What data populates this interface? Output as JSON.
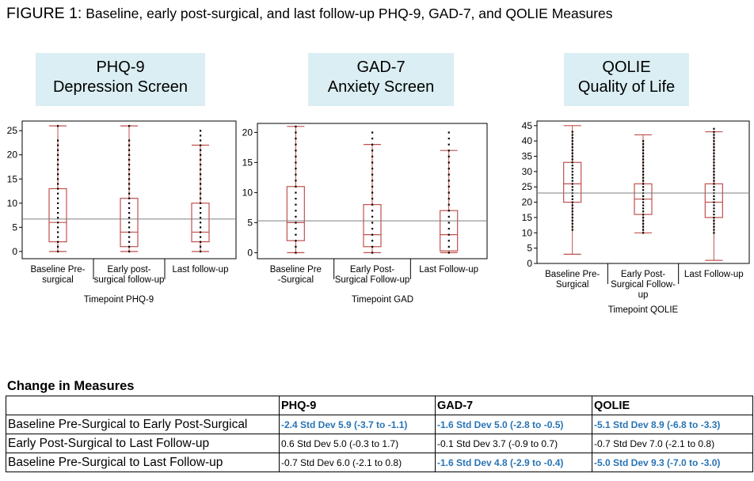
{
  "figure": {
    "label": "FIGURE 1:",
    "caption": "Baseline, early post-surgical, and last follow-up PHQ-9, GAD-7, and QOLIE Measures"
  },
  "colors": {
    "panel_label_bg": "#daeef3",
    "box_stroke": "#c0504d",
    "mean_line": "#7f7f7f",
    "highlight_text": "#2874b4"
  },
  "chart_data": [
    {
      "type": "box",
      "panel_title": [
        "PHQ-9",
        "Depression Screen"
      ],
      "xlabel": "Timepoint PHQ-9",
      "ylabel": "",
      "ylim": [
        -1.5,
        27
      ],
      "yticks": [
        0,
        5,
        10,
        15,
        20,
        25
      ],
      "reference_line": 6.7,
      "categories": [
        [
          "Baseline Pre-",
          "surgical"
        ],
        [
          "Early post-",
          "surgical follow-up"
        ],
        [
          "Last follow-up"
        ]
      ],
      "boxes": [
        {
          "min": 0,
          "q1": 2,
          "median": 6,
          "q3": 13,
          "max": 26
        },
        {
          "min": 0,
          "q1": 1,
          "median": 4,
          "q3": 11,
          "max": 26
        },
        {
          "min": 0,
          "q1": 2,
          "median": 4,
          "q3": 10,
          "max": 22
        }
      ],
      "points": [
        [
          0,
          1,
          2,
          3,
          4,
          5,
          6,
          7,
          8,
          9,
          10,
          11,
          12,
          13,
          14,
          15,
          16,
          17,
          18,
          19,
          20,
          21,
          22,
          23,
          26
        ],
        [
          0,
          1,
          2,
          3,
          4,
          5,
          6,
          7,
          8,
          9,
          10,
          11,
          12,
          13,
          14,
          15,
          16,
          17,
          18,
          19,
          20,
          21,
          22,
          23,
          26
        ],
        [
          0,
          1,
          2,
          3,
          4,
          5,
          6,
          7,
          8,
          9,
          10,
          11,
          12,
          13,
          14,
          15,
          16,
          17,
          18,
          19,
          20,
          21,
          22,
          23,
          24,
          25
        ]
      ]
    },
    {
      "type": "box",
      "panel_title": [
        "GAD-7",
        "Anxiety Screen"
      ],
      "xlabel": "Timepoint GAD",
      "ylabel": "",
      "ylim": [
        -1,
        21.5
      ],
      "yticks": [
        0,
        5,
        10,
        15,
        20
      ],
      "reference_line": 5.3,
      "categories": [
        [
          "Baseline Pre",
          "-Surgical"
        ],
        [
          "Early Post-",
          "Surgical Follow-up"
        ],
        [
          "Last Follow-up"
        ]
      ],
      "boxes": [
        {
          "min": 0,
          "q1": 2,
          "median": 5,
          "q3": 11,
          "max": 21
        },
        {
          "min": 0,
          "q1": 1,
          "median": 3,
          "q3": 8,
          "max": 18
        },
        {
          "min": 0,
          "q1": 0.3,
          "median": 3,
          "q3": 7,
          "max": 17
        }
      ],
      "points": [
        [
          0,
          1,
          2,
          3,
          4,
          5,
          6,
          7,
          8,
          9,
          10,
          11,
          12,
          13,
          14,
          15,
          16,
          17,
          18,
          19,
          20,
          21
        ],
        [
          0,
          1,
          2,
          3,
          4,
          5,
          6,
          7,
          8,
          9,
          10,
          11,
          12,
          13,
          14,
          15,
          16,
          17,
          18,
          19,
          20
        ],
        [
          0,
          1,
          2,
          3,
          4,
          5,
          6,
          7,
          8,
          9,
          10,
          11,
          12,
          13,
          14,
          15,
          16,
          17,
          18,
          19,
          20
        ]
      ]
    },
    {
      "type": "box",
      "panel_title": [
        "QOLIE",
        "Quality of Life"
      ],
      "xlabel": "Timepoint QOLIE",
      "ylabel": "",
      "ylim": [
        0,
        46.5
      ],
      "yticks": [
        0,
        5,
        10,
        15,
        20,
        25,
        30,
        35,
        40,
        45
      ],
      "reference_line": 23,
      "categories": [
        [
          "Baseline Pre-",
          "Surgical"
        ],
        [
          "Early Post-",
          "Surgical Follow-",
          "up"
        ],
        [
          "Last Follow-up"
        ]
      ],
      "boxes": [
        {
          "min": 3,
          "q1": 20,
          "median": 26,
          "q3": 33,
          "max": 45
        },
        {
          "min": 10,
          "q1": 16,
          "median": 21,
          "q3": 26,
          "max": 42
        },
        {
          "min": 1,
          "q1": 15,
          "median": 20,
          "q3": 26,
          "max": 43
        }
      ],
      "points": [
        [
          11,
          12,
          13,
          14,
          15,
          16,
          17,
          18,
          19,
          20,
          21,
          22,
          23,
          24,
          25,
          26,
          27,
          28,
          29,
          30,
          31,
          32,
          33,
          34,
          35,
          36,
          37,
          38,
          39,
          40,
          41,
          42,
          43
        ],
        [
          10,
          11,
          12,
          13,
          14,
          15,
          16,
          17,
          18,
          19,
          20,
          21,
          22,
          23,
          24,
          25,
          26,
          27,
          28,
          29,
          30,
          31,
          32,
          33,
          34,
          35,
          36,
          37,
          38,
          39,
          40
        ],
        [
          10,
          11,
          12,
          13,
          14,
          15,
          16,
          17,
          18,
          19,
          20,
          21,
          22,
          23,
          24,
          25,
          26,
          27,
          28,
          29,
          30,
          31,
          32,
          33,
          34,
          35,
          36,
          37,
          38,
          39,
          40,
          41,
          42,
          43,
          44
        ]
      ]
    }
  ],
  "change_table": {
    "title": "Change in Measures",
    "headers": [
      "",
      "PHQ-9",
      "GAD-7",
      "QOLIE"
    ],
    "rows": [
      {
        "label": "Baseline Pre-Surgical to Early Post-Surgical",
        "cells": [
          {
            "text": "-2.4  Std Dev 5.9  (-3.7 to -1.1)",
            "highlight": true
          },
          {
            "text": "-1.6  Std Dev 5.0  (-2.8 to -0.5)",
            "highlight": true
          },
          {
            "text": "-5.1  Std Dev 8.9  (-6.8 to -3.3)",
            "highlight": true
          }
        ]
      },
      {
        "label": "Early Post-Surgical to Last Follow-up",
        "cells": [
          {
            "text": "0.6   Std Dev 5.0 (-0.3 to 1.7)",
            "highlight": false
          },
          {
            "text": "-0.1   Std Dev  3.7  (-0.9 to 0.7)",
            "highlight": false
          },
          {
            "text": "-0.7  Std Dev 7.0   (-2.1 to 0.8)",
            "highlight": false
          }
        ]
      },
      {
        "label": "Baseline Pre-Surgical to Last Follow-up",
        "cells": [
          {
            "text": "-0.7  Std Dev 6.0  (-2.1 to 0.8)",
            "highlight": false
          },
          {
            "text": "-1.6  Std Dev 4.8   (-2.9 to -0.4)",
            "highlight": true
          },
          {
            "text": "-5.0  Std Dev 9.3  (-7.0 to -3.0)",
            "highlight": true
          }
        ]
      }
    ]
  }
}
